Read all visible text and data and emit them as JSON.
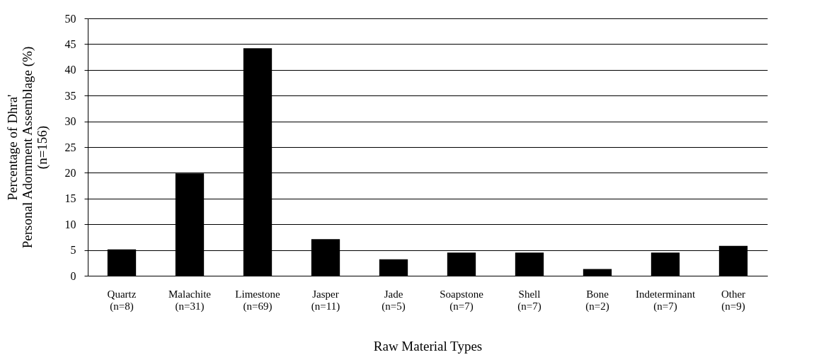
{
  "chart_data": {
    "type": "bar",
    "categories": [
      "Quartz\n(n=8)",
      "Malachite\n(n=31)",
      "Limestone\n(n=69)",
      "Jasper\n(n=11)",
      "Jade\n(n=5)",
      "Soapstone\n(n=7)",
      "Shell\n(n=7)",
      "Bone\n(n=2)",
      "Indeterminant\n(n=7)",
      "Other\n(n=9)"
    ],
    "values": [
      5.1,
      19.9,
      44.2,
      7.1,
      3.2,
      4.5,
      4.5,
      1.3,
      4.5,
      5.8
    ],
    "color": "#000000",
    "xlabel": "Raw Material Types",
    "ylabel": "Percentage of Dhra'\nPersonal Adornment Assemblage (%)\n(n=156)",
    "ylim": [
      0,
      50
    ],
    "yticks": [
      0,
      5,
      10,
      15,
      20,
      25,
      30,
      35,
      40,
      45,
      50
    ],
    "grid": "y"
  }
}
